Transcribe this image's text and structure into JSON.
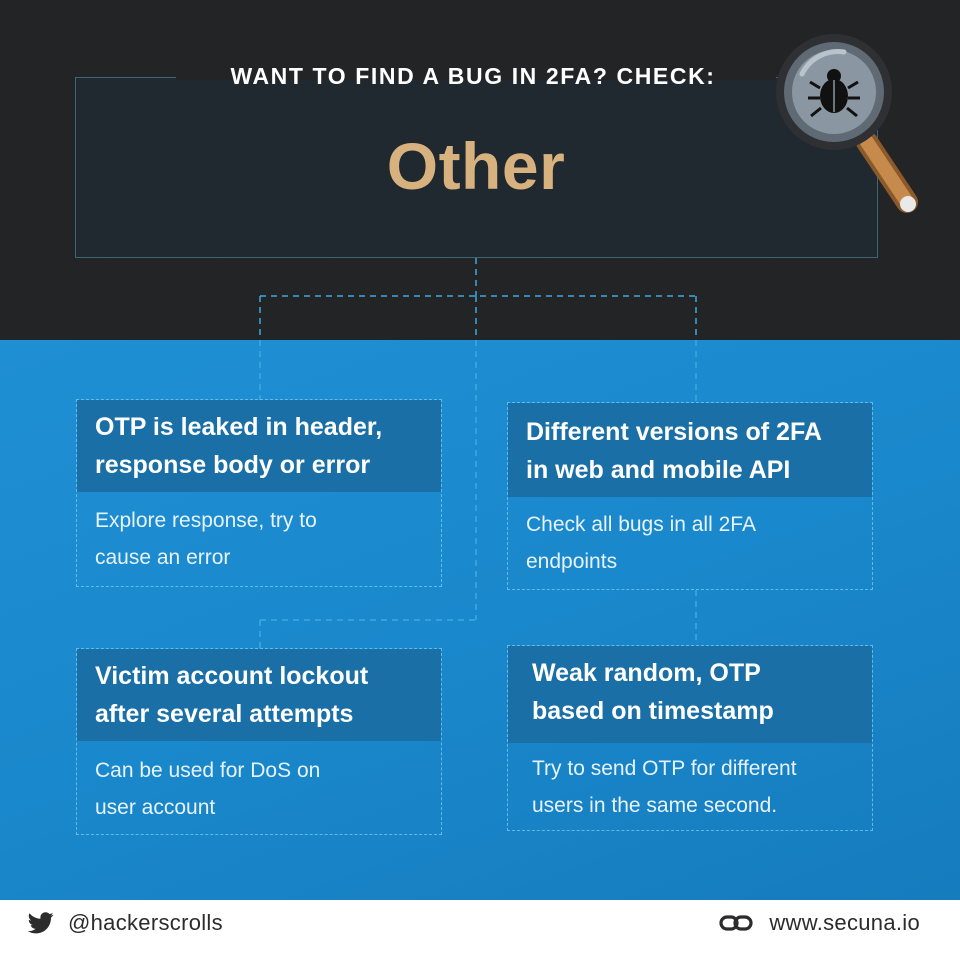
{
  "header": {
    "headline": "WANT TO FIND A BUG IN 2FA? CHECK:",
    "title": "Other"
  },
  "cards": [
    {
      "title_line1": "OTP is leaked in header,",
      "title_line2": "response body or error",
      "body_line1": "Explore response, try to",
      "body_line2": "cause an error"
    },
    {
      "title_line1": "Different versions of 2FA",
      "title_line2": "in web and mobile API",
      "body_line1": "Check all bugs in all 2FA",
      "body_line2": "endpoints"
    },
    {
      "title_line1": "Victim account lockout",
      "title_line2": "after several attempts",
      "body_line1": "Can be used for DoS on",
      "body_line2": "user account"
    },
    {
      "title_line1": "Weak random, OTP",
      "title_line2": "based on timestamp",
      "body_line1": "Try to send OTP for different",
      "body_line2": "users in the same second."
    }
  ],
  "footer": {
    "twitter_handle": "@hackerscrolls",
    "website": "www.secuna.io"
  },
  "icons": {
    "magnifier": "magnifying-glass-bug-icon",
    "twitter": "twitter-bird-icon",
    "link": "chain-link-icon"
  },
  "colors": {
    "dark_bg": "#222426",
    "blue_bg": "#1a87cb",
    "card_header": "#1a6fa6",
    "title_gold": "#d7b27f"
  }
}
